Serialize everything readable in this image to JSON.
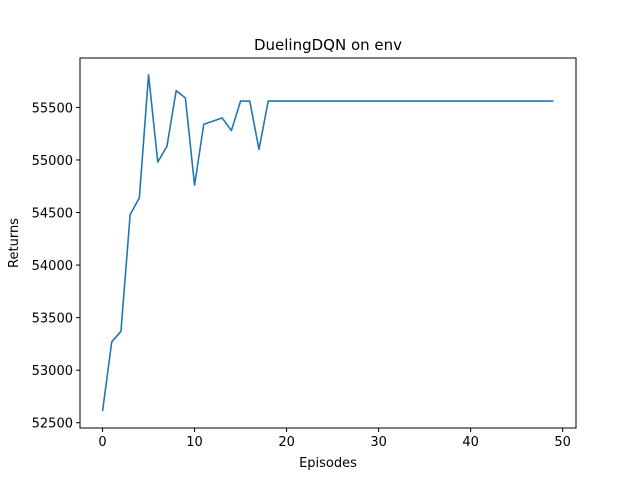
{
  "chart_data": {
    "type": "line",
    "title": "DuelingDQN on env",
    "xlabel": "Episodes",
    "ylabel": "Returns",
    "xlim": [
      -2.45,
      51.45
    ],
    "ylim": [
      52450,
      55970
    ],
    "x_ticks": [
      0,
      10,
      20,
      30,
      40,
      50
    ],
    "y_ticks": [
      52500,
      53000,
      53500,
      54000,
      54500,
      55000,
      55500
    ],
    "grid": false,
    "legend": "none",
    "series": [
      {
        "color": "#1f77b4",
        "x": [
          0,
          1,
          2,
          3,
          4,
          5,
          6,
          7,
          8,
          9,
          10,
          11,
          12,
          13,
          14,
          15,
          16,
          17,
          18,
          19,
          20,
          21,
          22,
          23,
          24,
          25,
          26,
          27,
          28,
          29,
          30,
          31,
          32,
          33,
          34,
          35,
          36,
          37,
          38,
          39,
          40,
          41,
          42,
          43,
          44,
          45,
          46,
          47,
          48,
          49
        ],
        "values": [
          52610,
          53270,
          53370,
          54480,
          54640,
          55810,
          54980,
          55130,
          55660,
          55590,
          54760,
          55340,
          55370,
          55400,
          55280,
          55560,
          55560,
          55100,
          55560,
          55560,
          55560,
          55560,
          55560,
          55560,
          55560,
          55560,
          55560,
          55560,
          55560,
          55560,
          55560,
          55560,
          55560,
          55560,
          55560,
          55560,
          55560,
          55560,
          55560,
          55560,
          55560,
          55560,
          55560,
          55560,
          55560,
          55560,
          55560,
          55560,
          55560,
          55560
        ]
      }
    ]
  }
}
